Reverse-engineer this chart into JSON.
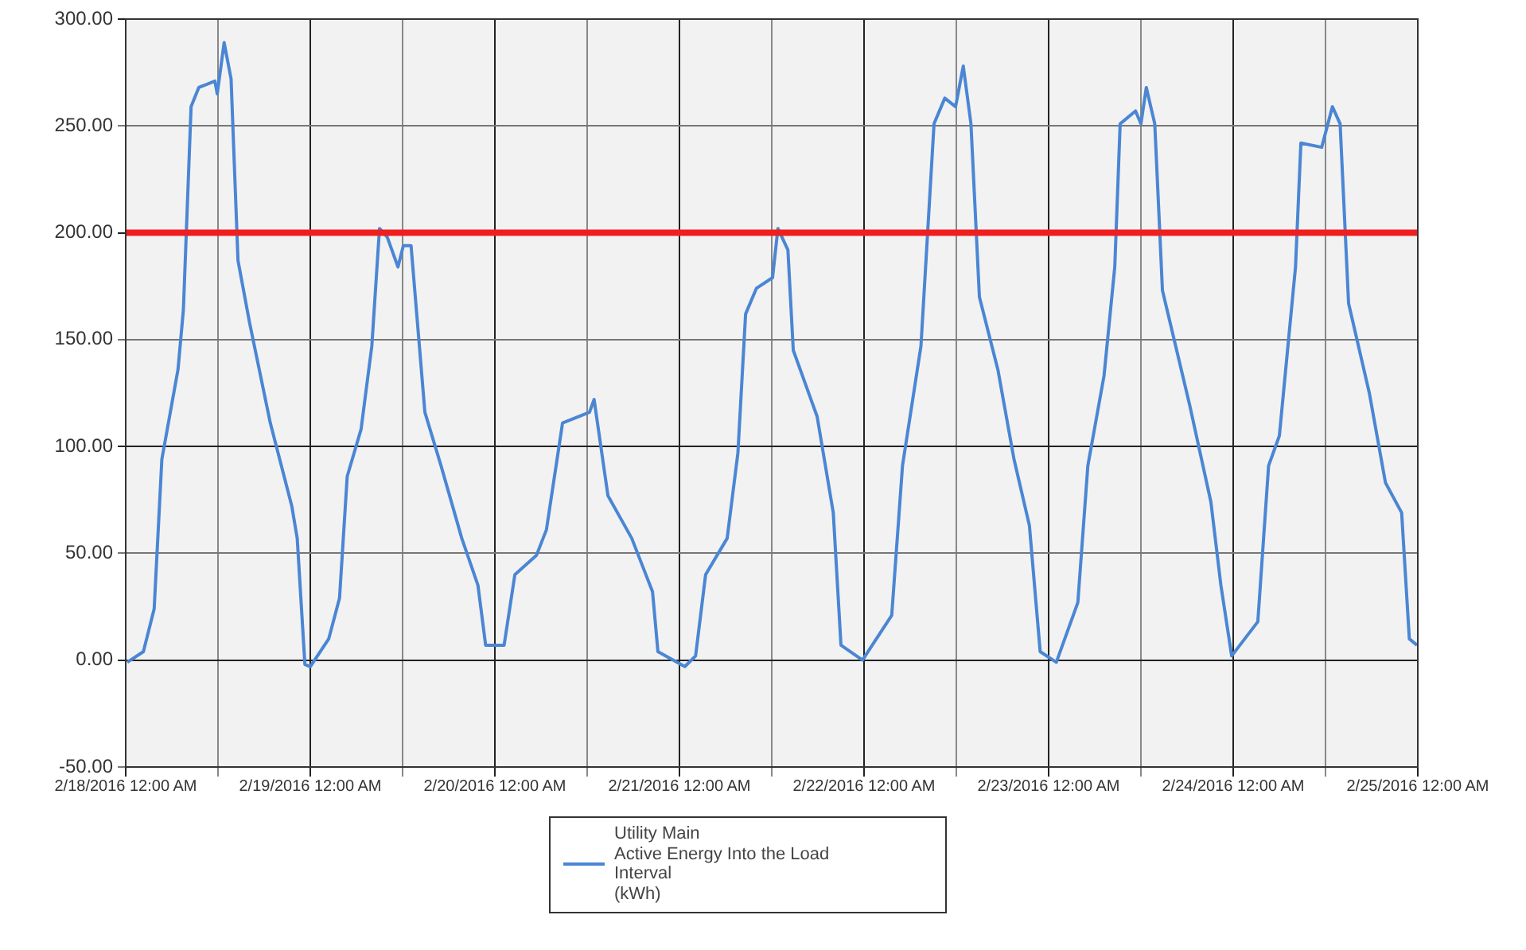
{
  "chart_data": {
    "type": "line",
    "x": [
      "2016-02-18T00:12",
      "2016-02-18T02:18",
      "2016-02-18T03:42",
      "2016-02-18T04:42",
      "2016-02-18T06:48",
      "2016-02-18T07:30",
      "2016-02-18T08:30",
      "2016-02-18T09:30",
      "2016-02-18T11:36",
      "2016-02-18T11:54",
      "2016-02-18T12:48",
      "2016-02-18T13:42",
      "2016-02-18T14:36",
      "2016-02-18T16:06",
      "2016-02-18T18:48",
      "2016-02-18T21:36",
      "2016-02-18T22:18",
      "2016-02-18T23:18",
      "2016-02-19T00:00",
      "2016-02-19T02:24",
      "2016-02-19T03:48",
      "2016-02-19T04:48",
      "2016-02-19T06:36",
      "2016-02-19T08:00",
      "2016-02-19T09:00",
      "2016-02-19T10:00",
      "2016-02-19T11:24",
      "2016-02-19T12:06",
      "2016-02-19T13:06",
      "2016-02-19T14:54",
      "2016-02-19T17:00",
      "2016-02-19T19:42",
      "2016-02-19T21:48",
      "2016-02-19T22:48",
      "2016-02-20T01:12",
      "2016-02-20T02:36",
      "2016-02-20T05:24",
      "2016-02-20T06:42",
      "2016-02-20T08:48",
      "2016-02-20T12:18",
      "2016-02-20T12:54",
      "2016-02-20T14:42",
      "2016-02-20T17:48",
      "2016-02-20T20:30",
      "2016-02-20T21:12",
      "2016-02-21T00:42",
      "2016-02-21T02:06",
      "2016-02-21T03:24",
      "2016-02-21T06:12",
      "2016-02-21T07:36",
      "2016-02-21T08:36",
      "2016-02-21T10:00",
      "2016-02-21T12:06",
      "2016-02-21T12:48",
      "2016-02-21T14:06",
      "2016-02-21T14:48",
      "2016-02-21T17:54",
      "2016-02-21T20:00",
      "2016-02-21T21:00",
      "2016-02-21T23:48",
      "2016-02-22T03:36",
      "2016-02-22T05:00",
      "2016-02-22T07:24",
      "2016-02-22T09:06",
      "2016-02-22T10:30",
      "2016-02-22T11:54",
      "2016-02-22T12:54",
      "2016-02-22T13:54",
      "2016-02-22T15:00",
      "2016-02-22T17:24",
      "2016-02-22T19:30",
      "2016-02-22T21:30",
      "2016-02-22T22:54",
      "2016-02-23T01:00",
      "2016-02-23T03:48",
      "2016-02-23T05:06",
      "2016-02-23T07:12",
      "2016-02-23T08:36",
      "2016-02-23T09:18",
      "2016-02-23T11:18",
      "2016-02-23T12:00",
      "2016-02-23T12:42",
      "2016-02-23T13:48",
      "2016-02-23T14:48",
      "2016-02-23T18:18",
      "2016-02-23T21:06",
      "2016-02-23T22:24",
      "2016-02-23T23:48",
      "2016-02-24T03:12",
      "2016-02-24T04:36",
      "2016-02-24T06:00",
      "2016-02-24T08:06",
      "2016-02-24T08:48",
      "2016-02-24T11:30",
      "2016-02-24T12:54",
      "2016-02-24T13:54",
      "2016-02-24T15:00",
      "2016-02-24T17:42",
      "2016-02-24T19:48",
      "2016-02-24T21:54",
      "2016-02-24T22:54",
      "2016-02-24T23:54"
    ],
    "series": [
      {
        "name": "Utility Main\nActive Energy Into the Load\nInterval\n(kWh)",
        "color": "#4a86d4",
        "values": [
          -1,
          4,
          24,
          94,
          136,
          164,
          259,
          268,
          271,
          265,
          289,
          272,
          187,
          158,
          111,
          72,
          57,
          -2,
          -3,
          10,
          29,
          86,
          108,
          147,
          202,
          198,
          184,
          194,
          194,
          116,
          91,
          57,
          35,
          7,
          7,
          40,
          49,
          61,
          111,
          116,
          122,
          77,
          57,
          32,
          4,
          -3,
          2,
          40,
          57,
          97,
          162,
          174,
          179,
          202,
          192,
          145,
          114,
          69,
          7,
          0,
          21,
          91,
          147,
          251,
          263,
          259,
          278,
          251,
          170,
          136,
          94,
          63,
          4,
          -1,
          27,
          91,
          133,
          184,
          251,
          257,
          251,
          268,
          251,
          173,
          120,
          74,
          35,
          2,
          18,
          91,
          105,
          184,
          242,
          240,
          259,
          251,
          167,
          125,
          83,
          69,
          10,
          7
        ]
      }
    ],
    "xlim": [
      "2016-02-18T00:00",
      "2016-02-25T00:00"
    ],
    "xticks": [
      {
        "value": "2016-02-18T00:00",
        "label": "2/18/2016 12:00 AM"
      },
      {
        "value": "2016-02-18T12:00",
        "label": null
      },
      {
        "value": "2016-02-19T00:00",
        "label": "2/19/2016 12:00 AM"
      },
      {
        "value": "2016-02-19T12:00",
        "label": null
      },
      {
        "value": "2016-02-20T00:00",
        "label": "2/20/2016 12:00 AM"
      },
      {
        "value": "2016-02-20T12:00",
        "label": null
      },
      {
        "value": "2016-02-21T00:00",
        "label": "2/21/2016 12:00 AM"
      },
      {
        "value": "2016-02-21T12:00",
        "label": null
      },
      {
        "value": "2016-02-22T00:00",
        "label": "2/22/2016 12:00 AM"
      },
      {
        "value": "2016-02-22T12:00",
        "label": null
      },
      {
        "value": "2016-02-23T00:00",
        "label": "2/23/2016 12:00 AM"
      },
      {
        "value": "2016-02-23T12:00",
        "label": null
      },
      {
        "value": "2016-02-24T00:00",
        "label": "2/24/2016 12:00 AM"
      },
      {
        "value": "2016-02-24T12:00",
        "label": null
      },
      {
        "value": "2016-02-25T00:00",
        "label": "2/25/2016 12:00 AM"
      }
    ],
    "ylim": [
      -50,
      300
    ],
    "yticks": [
      {
        "value": -50,
        "label": "-50.00"
      },
      {
        "value": 0,
        "label": "0.00"
      },
      {
        "value": 50,
        "label": "50.00"
      },
      {
        "value": 100,
        "label": "100.00"
      },
      {
        "value": 150,
        "label": "150.00"
      },
      {
        "value": 200,
        "label": "200.00"
      },
      {
        "value": 250,
        "label": "250.00"
      },
      {
        "value": 300,
        "label": "300.00"
      }
    ],
    "ref_lines": [
      {
        "axis": "y",
        "value": 200,
        "color": "#f01e1e"
      }
    ],
    "grid": true,
    "legend": "bottom",
    "marker": "none",
    "line_style": "solid"
  }
}
